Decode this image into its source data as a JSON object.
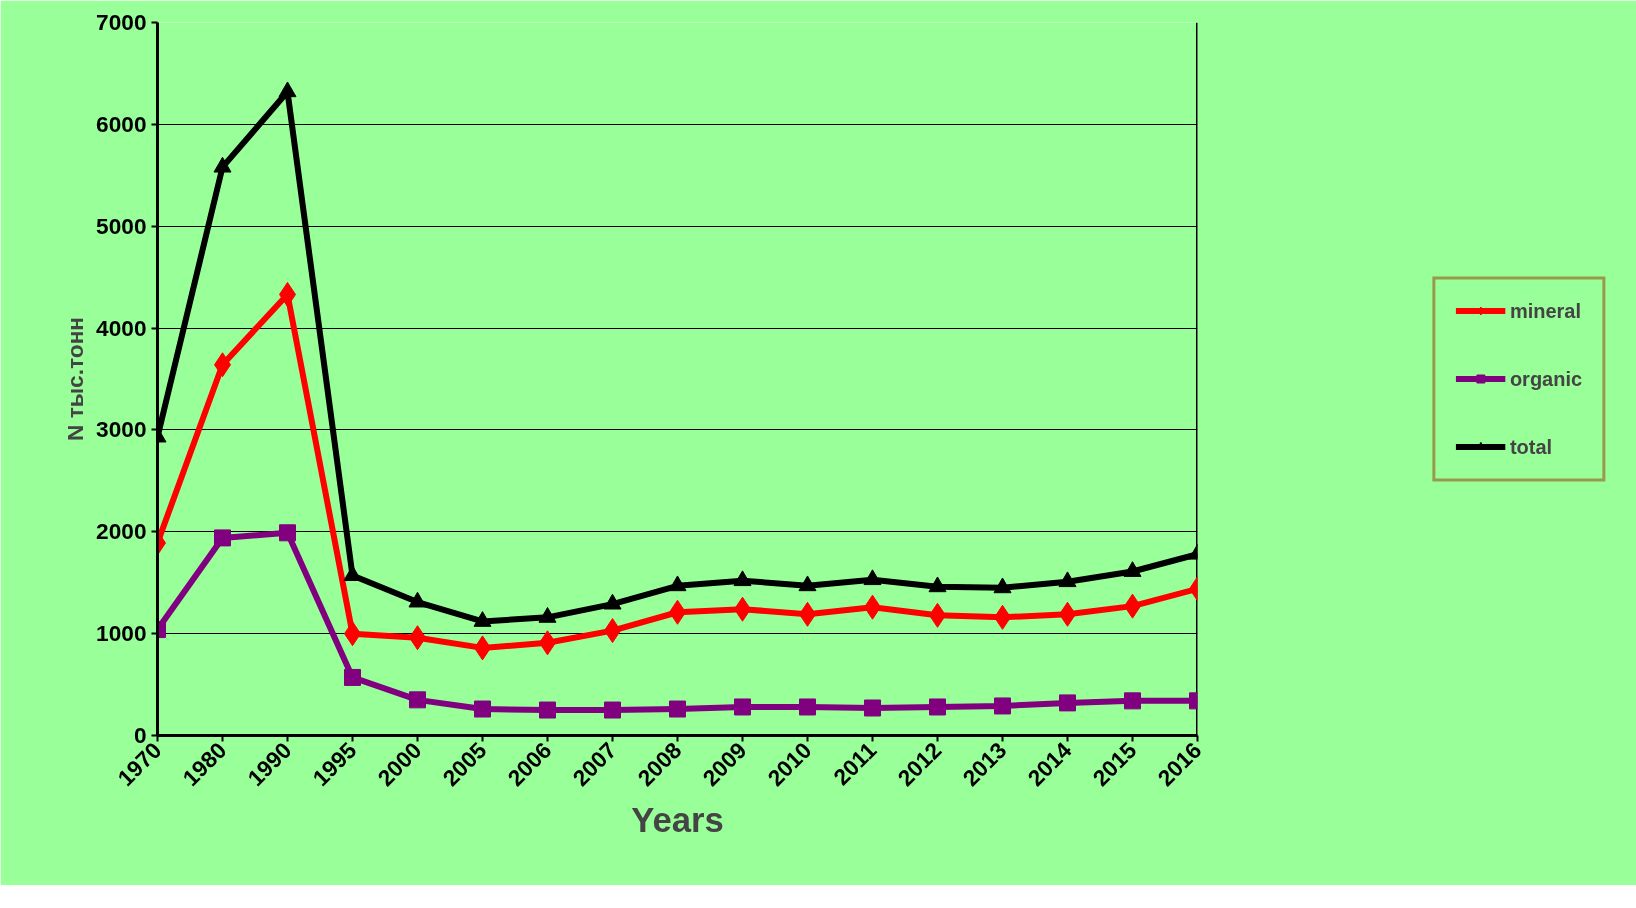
{
  "chart_data": {
    "type": "line",
    "xlabel": "Years",
    "ylabel": "N тыс.тонн",
    "categories": [
      "1970",
      "1980",
      "1990",
      "1995",
      "2000",
      "2005",
      "2006",
      "2007",
      "2008",
      "2009",
      "2010",
      "2011",
      "2012",
      "2013",
      "2014",
      "2015",
      "2016"
    ],
    "series": [
      {
        "name": "mineral",
        "color": "#ff0000",
        "marker": "diamond",
        "values": [
          1890,
          3640,
          4330,
          1000,
          960,
          860,
          910,
          1030,
          1210,
          1240,
          1190,
          1260,
          1180,
          1160,
          1190,
          1270,
          1440
        ]
      },
      {
        "name": "organic",
        "color": "#800080",
        "marker": "square",
        "values": [
          1040,
          1940,
          1990,
          570,
          350,
          260,
          250,
          250,
          260,
          280,
          280,
          270,
          280,
          290,
          320,
          340,
          340
        ]
      },
      {
        "name": "total",
        "color": "#000000",
        "marker": "triangle",
        "values": [
          2930,
          5580,
          6320,
          1570,
          1310,
          1120,
          1160,
          1290,
          1470,
          1520,
          1470,
          1530,
          1460,
          1450,
          1510,
          1610,
          1780
        ]
      }
    ],
    "ylim": [
      0,
      7000
    ],
    "yticks": [
      0,
      1000,
      2000,
      3000,
      4000,
      5000,
      6000,
      7000
    ],
    "grid": "y",
    "legend": "right",
    "line_style": "solid"
  }
}
